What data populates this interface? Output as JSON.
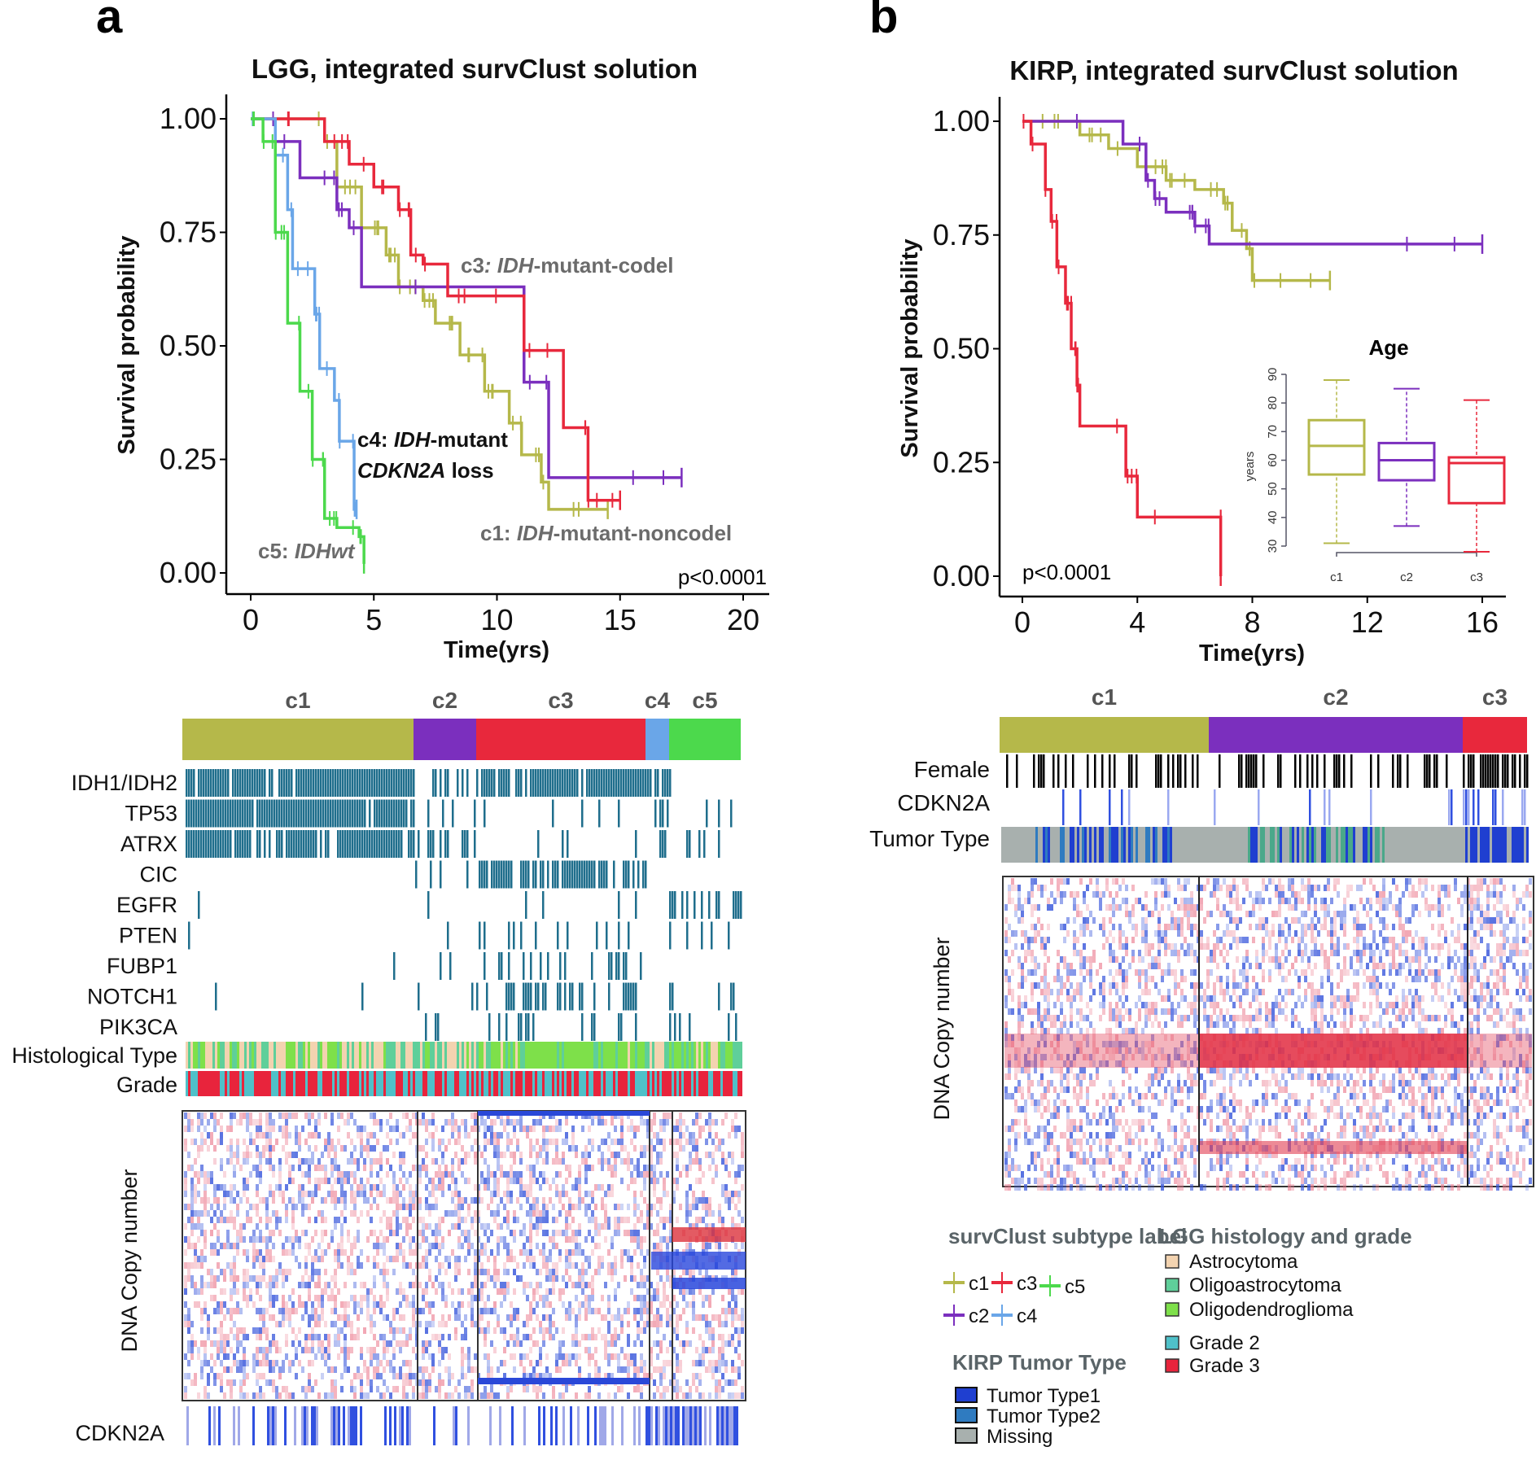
{
  "panel_letters": {
    "a": "a",
    "b": "b"
  },
  "legend": {
    "subtype_title": "survClust subtype label",
    "subtypes": [
      {
        "label": "c1",
        "color": "#b5b84a"
      },
      {
        "label": "c2",
        "color": "#7b2fbe"
      },
      {
        "label": "c3",
        "color": "#e8283c"
      },
      {
        "label": "c4",
        "color": "#6aa6e8"
      },
      {
        "label": "c5",
        "color": "#4cd94c"
      }
    ],
    "kirp_title": "KIRP Tumor Type",
    "kirp_items": [
      {
        "label": "Tumor Type1",
        "color": "#1f3fd0"
      },
      {
        "label": "Tumor Type2",
        "color": "#2f7bc0"
      },
      {
        "label": "Missing",
        "color": "#a8b0ae"
      }
    ],
    "lgg_title": "LGG histology  and grade",
    "lgg_items": [
      {
        "label": "Astrocytoma",
        "color": "#f3d3b0"
      },
      {
        "label": "Oligoastrocytoma",
        "color": "#5fcf9a"
      },
      {
        "label": "Oligodendroglioma",
        "color": "#7ee04a"
      },
      {
        "label": "Grade 2",
        "color": "#4fc1c9"
      },
      {
        "label": "Grade 3",
        "color": "#e8243c"
      }
    ]
  },
  "heatmap_a": {
    "clusters": [
      "c1",
      "c2",
      "c3",
      "c4",
      "c5"
    ],
    "genes": [
      "IDH1/IDH2",
      "TP53",
      "ATRX",
      "CIC",
      "EGFR",
      "PTEN",
      "FUBP1",
      "NOTCH1",
      "PIK3CA"
    ],
    "annotation_rows": [
      "Histological Type",
      "Grade"
    ],
    "cn_label": "DNA Copy number",
    "bottom_row": "CDKN2A"
  },
  "heatmap_b": {
    "clusters": [
      "c1",
      "c2",
      "c3"
    ],
    "annotation_rows": [
      "Female",
      "CDKN2A",
      "Tumor Type"
    ],
    "cn_label": "DNA Copy number"
  },
  "chart_data": [
    {
      "type": "line",
      "title": "LGG, integrated survClust solution",
      "xlabel": "Time(yrs)",
      "ylabel": "Survival probability",
      "xlim": [
        0,
        20
      ],
      "ylim": [
        0,
        1
      ],
      "xticks": [
        "0",
        "5",
        "10",
        "15",
        "20"
      ],
      "yticks": [
        "0.00",
        "0.25",
        "0.50",
        "0.75",
        "1.00"
      ],
      "annotation": "p<0.0001",
      "series": [
        {
          "name": "c1: IDH-mutant-noncodel",
          "color": "#b5b84a",
          "points": [
            [
              0,
              1
            ],
            [
              3,
              0.95
            ],
            [
              3.5,
              0.85
            ],
            [
              4.5,
              0.76
            ],
            [
              5.5,
              0.7
            ],
            [
              6,
              0.63
            ],
            [
              7,
              0.6
            ],
            [
              7.5,
              0.55
            ],
            [
              8.5,
              0.48
            ],
            [
              9.5,
              0.4
            ],
            [
              10.5,
              0.33
            ],
            [
              11,
              0.26
            ],
            [
              11.8,
              0.2
            ],
            [
              12.1,
              0.14
            ],
            [
              14.5,
              0.14
            ]
          ]
        },
        {
          "name": "c2",
          "color": "#7b2fbe",
          "points": [
            [
              0,
              1
            ],
            [
              1,
              0.95
            ],
            [
              2,
              0.87
            ],
            [
              3.5,
              0.8
            ],
            [
              4,
              0.76
            ],
            [
              4.5,
              0.63
            ],
            [
              11.1,
              0.42
            ],
            [
              12.1,
              0.21
            ],
            [
              17.5,
              0.21
            ]
          ]
        },
        {
          "name": "c3: IDH-mutant-codel",
          "color": "#e8283c",
          "points": [
            [
              0,
              1
            ],
            [
              3,
              0.95
            ],
            [
              4,
              0.9
            ],
            [
              5,
              0.85
            ],
            [
              6,
              0.8
            ],
            [
              6.5,
              0.7
            ],
            [
              7,
              0.68
            ],
            [
              8,
              0.61
            ],
            [
              11.1,
              0.49
            ],
            [
              12.7,
              0.32
            ],
            [
              13.7,
              0.16
            ],
            [
              15,
              0.16
            ]
          ]
        },
        {
          "name": "c4: IDH-mutant CDKN2A loss",
          "color": "#6aa6e8",
          "points": [
            [
              0,
              1
            ],
            [
              1,
              0.92
            ],
            [
              1.5,
              0.8
            ],
            [
              1.7,
              0.67
            ],
            [
              2.6,
              0.57
            ],
            [
              2.8,
              0.45
            ],
            [
              3.4,
              0.38
            ],
            [
              3.6,
              0.29
            ],
            [
              4.2,
              0.14
            ],
            [
              4.3,
              0.14
            ]
          ]
        },
        {
          "name": "c5: IDHwt",
          "color": "#4cd94c",
          "points": [
            [
              0,
              1
            ],
            [
              0.5,
              0.95
            ],
            [
              1,
              0.75
            ],
            [
              1.5,
              0.55
            ],
            [
              2,
              0.4
            ],
            [
              2.5,
              0.25
            ],
            [
              3,
              0.12
            ],
            [
              3.5,
              0.1
            ],
            [
              4.4,
              0.08
            ],
            [
              4.6,
              0.02
            ]
          ]
        }
      ]
    },
    {
      "type": "line",
      "title": "KIRP, integrated survClust solution",
      "xlabel": "Time(yrs)",
      "ylabel": "Survival probability",
      "xlim": [
        0,
        16
      ],
      "ylim": [
        0,
        1
      ],
      "xticks": [
        "0",
        "4",
        "8",
        "12",
        "16"
      ],
      "yticks": [
        "0.00",
        "0.25",
        "0.50",
        "0.75",
        "1.00"
      ],
      "annotation": "p<0.0001",
      "series": [
        {
          "name": "c1",
          "color": "#b5b84a",
          "points": [
            [
              0,
              1
            ],
            [
              2,
              0.97
            ],
            [
              3,
              0.94
            ],
            [
              4,
              0.9
            ],
            [
              5,
              0.87
            ],
            [
              6,
              0.85
            ],
            [
              7,
              0.82
            ],
            [
              7.3,
              0.76
            ],
            [
              7.8,
              0.72
            ],
            [
              8,
              0.65
            ],
            [
              10.7,
              0.65
            ]
          ]
        },
        {
          "name": "c2",
          "color": "#7b2fbe",
          "points": [
            [
              0,
              1
            ],
            [
              3.5,
              0.95
            ],
            [
              4.3,
              0.87
            ],
            [
              4.6,
              0.83
            ],
            [
              5,
              0.8
            ],
            [
              6,
              0.77
            ],
            [
              6.5,
              0.73
            ],
            [
              16,
              0.73
            ]
          ]
        },
        {
          "name": "c3",
          "color": "#e8283c",
          "points": [
            [
              0,
              1
            ],
            [
              0.3,
              0.95
            ],
            [
              0.8,
              0.85
            ],
            [
              1,
              0.78
            ],
            [
              1.2,
              0.68
            ],
            [
              1.5,
              0.6
            ],
            [
              1.7,
              0.5
            ],
            [
              1.9,
              0.42
            ],
            [
              2,
              0.33
            ],
            [
              3.6,
              0.22
            ],
            [
              4,
              0.13
            ],
            [
              6.9,
              0.13
            ],
            [
              6.9,
              0
            ]
          ]
        }
      ]
    },
    {
      "type": "box",
      "title": "Age",
      "ylabel": "years",
      "ylim": [
        30,
        90
      ],
      "yticks": [
        "30",
        "40",
        "50",
        "60",
        "70",
        "80",
        "90"
      ],
      "categories": [
        "c1",
        "c2",
        "c3"
      ],
      "boxes": [
        {
          "name": "c1",
          "color": "#b5b84a",
          "min": 31,
          "q1": 55,
          "median": 65,
          "q3": 74,
          "max": 88
        },
        {
          "name": "c2",
          "color": "#7b2fbe",
          "min": 37,
          "q1": 53,
          "median": 60,
          "q3": 66,
          "max": 85
        },
        {
          "name": "c3",
          "color": "#e8283c",
          "min": 28,
          "q1": 45,
          "median": 59,
          "q3": 61,
          "max": 81
        }
      ]
    }
  ]
}
